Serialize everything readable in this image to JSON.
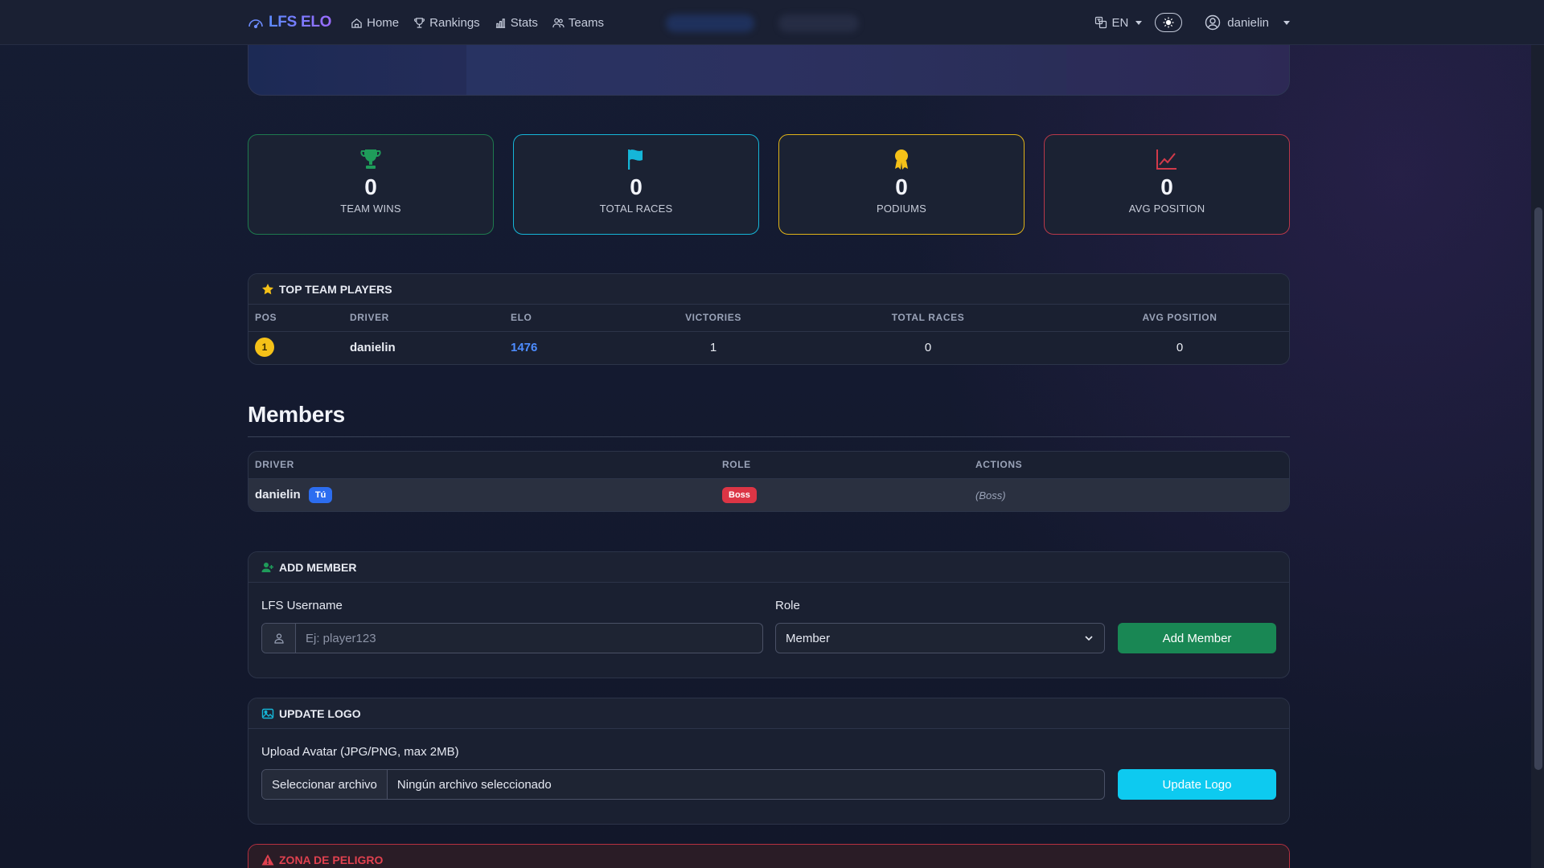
{
  "nav": {
    "brand": "LFS ELO",
    "links": [
      {
        "label": "Home",
        "icon": "home-icon"
      },
      {
        "label": "Rankings",
        "icon": "trophy-icon"
      },
      {
        "label": "Stats",
        "icon": "bar-chart-icon"
      },
      {
        "label": "Teams",
        "icon": "people-icon"
      }
    ],
    "language": "EN",
    "username": "danielin"
  },
  "stats": [
    {
      "value": "0",
      "label": "TEAM WINS",
      "icon": "trophy-icon",
      "color": "#1f9c5a"
    },
    {
      "value": "0",
      "label": "TOTAL RACES",
      "icon": "flag-icon",
      "color": "#15b6d8"
    },
    {
      "value": "0",
      "label": "PODIUMS",
      "icon": "award-icon",
      "color": "#f5c118"
    },
    {
      "value": "0",
      "label": "AVG POSITION",
      "icon": "graph-up-icon",
      "color": "#d13a4a"
    }
  ],
  "top_players": {
    "title": "TOP TEAM PLAYERS",
    "columns": [
      "POS",
      "DRIVER",
      "ELO",
      "VICTORIES",
      "TOTAL RACES",
      "AVG POSITION"
    ],
    "rows": [
      {
        "pos": "1",
        "driver": "danielin",
        "elo": "1476",
        "victories": "1",
        "total_races": "0",
        "avg_position": "0"
      }
    ]
  },
  "members": {
    "title": "Members",
    "columns": [
      "DRIVER",
      "ROLE",
      "ACTIONS"
    ],
    "rows": [
      {
        "driver": "danielin",
        "you_badge": "Tú",
        "role": "Boss",
        "actions": "(Boss)"
      }
    ]
  },
  "add_member": {
    "title": "ADD MEMBER",
    "username_label": "LFS Username",
    "username_placeholder": "Ej: player123",
    "role_label": "Role",
    "role_selected": "Member",
    "button": "Add Member"
  },
  "update_logo": {
    "title": "UPDATE LOGO",
    "upload_label": "Upload Avatar (JPG/PNG, max 2MB)",
    "file_button": "Seleccionar archivo",
    "file_status": "Ningún archivo seleccionado",
    "button": "Update Logo"
  },
  "danger_zone": {
    "title": "ZONA DE PELIGRO"
  }
}
